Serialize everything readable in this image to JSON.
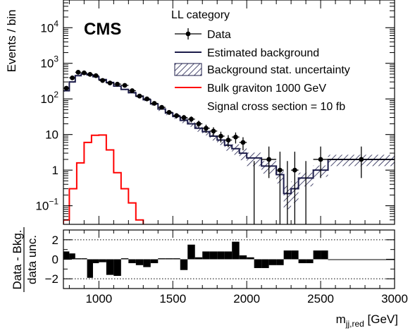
{
  "figure": {
    "experiment_label": "CMS",
    "legend_title": "LL category",
    "legend_note": "Signal cross section = 10 fb"
  },
  "chart_data": [
    {
      "type": "histogram",
      "panel": "main",
      "ylabel": "Events / bin",
      "yscale": "log",
      "ylim": [
        0.03,
        60000
      ],
      "xlim": [
        760,
        3000
      ],
      "yticks": [
        {
          "value": 0.1,
          "base": "10",
          "exp": "−1"
        },
        {
          "value": 1,
          "label": "1"
        },
        {
          "value": 10,
          "label": "10"
        },
        {
          "value": 100,
          "base": "10",
          "exp": "2"
        },
        {
          "value": 1000,
          "base": "10",
          "exp": "3"
        },
        {
          "value": 10000,
          "base": "10",
          "exp": "4"
        }
      ],
      "legend": [
        {
          "key": "data",
          "label": "Data"
        },
        {
          "key": "background",
          "label": "Estimated background"
        },
        {
          "key": "uncertainty",
          "label": "Background stat. uncertainty"
        },
        {
          "key": "signal",
          "label": "Bulk graviton 1000 GeV"
        }
      ],
      "colors": {
        "data": "#000000",
        "background": "#1c1c4a",
        "uncertainty": "#1c1c4a",
        "signal": "#ff0000"
      },
      "background": {
        "edges": [
          760,
          800,
          840,
          880,
          920,
          960,
          1000,
          1050,
          1100,
          1150,
          1200,
          1250,
          1300,
          1350,
          1400,
          1450,
          1500,
          1550,
          1600,
          1650,
          1700,
          1750,
          1800,
          1850,
          1900,
          1950,
          2000,
          2100,
          2200,
          2250,
          2300,
          2350,
          2450,
          2550,
          3000
        ],
        "values": [
          170,
          300,
          450,
          500,
          470,
          420,
          350,
          290,
          230,
          185,
          150,
          120,
          95,
          72,
          52,
          40,
          32,
          25,
          20,
          15,
          12,
          9,
          7,
          5,
          4,
          3,
          2.2,
          1.3,
          0.75,
          0.22,
          0.3,
          0.6,
          1.0,
          2.0
        ],
        "unc_low": [
          160,
          285,
          430,
          480,
          450,
          400,
          335,
          275,
          218,
          175,
          140,
          111,
          87,
          65,
          46,
          35,
          27.5,
          21,
          16.5,
          12,
          9.5,
          6.8,
          5.1,
          3.5,
          2.7,
          1.9,
          1.3,
          0.8,
          0.42,
          0.08,
          0.12,
          0.35,
          0.65,
          1.3
        ],
        "unc_high": [
          180,
          315,
          470,
          520,
          490,
          440,
          365,
          305,
          242,
          195,
          160,
          129,
          103,
          79,
          58,
          45,
          36.5,
          29,
          23.5,
          18,
          14.5,
          11.2,
          8.9,
          6.5,
          5.3,
          4.1,
          3.1,
          1.8,
          1.08,
          0.36,
          0.48,
          0.85,
          1.35,
          2.7
        ]
      },
      "signal": {
        "edges": [
          760,
          800,
          850,
          900,
          950,
          1000,
          1050,
          1100,
          1150,
          1200,
          1250,
          1300,
          3000
        ],
        "values": [
          0.04,
          0.3,
          1.6,
          6.0,
          9.5,
          9.7,
          3.7,
          0.85,
          0.3,
          0.12,
          0.04,
          0.02
        ]
      },
      "data": {
        "x": [
          780,
          820,
          860,
          900,
          940,
          980,
          1025,
          1075,
          1125,
          1175,
          1225,
          1275,
          1325,
          1375,
          1425,
          1475,
          1525,
          1575,
          1625,
          1675,
          1725,
          1775,
          1825,
          1875,
          1925,
          1975,
          2050,
          2150,
          2225,
          2275,
          2325,
          2400,
          2500,
          2775
        ],
        "xerr_low": [
          20,
          20,
          20,
          20,
          20,
          20,
          25,
          25,
          25,
          25,
          25,
          25,
          25,
          25,
          25,
          25,
          25,
          25,
          25,
          25,
          25,
          25,
          25,
          25,
          25,
          25,
          50,
          50,
          25,
          25,
          25,
          50,
          50,
          225
        ],
        "xerr_high": [
          20,
          20,
          20,
          20,
          20,
          20,
          25,
          25,
          25,
          25,
          25,
          25,
          25,
          25,
          25,
          25,
          25,
          25,
          25,
          25,
          25,
          25,
          25,
          25,
          25,
          25,
          50,
          50,
          25,
          25,
          25,
          50,
          50,
          225
        ],
        "y": [
          200,
          390,
          560,
          540,
          490,
          450,
          330,
          280,
          260,
          240,
          170,
          120,
          100,
          75,
          58,
          42,
          34,
          30,
          27,
          20,
          15,
          12.5,
          9,
          7,
          8.5,
          6,
          null,
          2,
          1,
          null,
          1,
          null,
          2,
          2
        ],
        "yerr_low": [
          14,
          20,
          24,
          23,
          22,
          21,
          18,
          17,
          16,
          15,
          13,
          11,
          10,
          8.6,
          7.6,
          6.5,
          5.8,
          5.5,
          5.2,
          4.5,
          3.9,
          3.5,
          3.0,
          2.6,
          2.9,
          2.4,
          null,
          1.4,
          0.97,
          null,
          0.97,
          null,
          1.4,
          1.4
        ],
        "yerr_high": [
          14,
          20,
          24,
          23,
          22,
          21,
          18,
          17,
          16,
          15,
          13,
          11,
          10,
          8.6,
          7.6,
          6.5,
          5.8,
          5.5,
          5.2,
          4.5,
          3.9,
          3.5,
          3.0,
          2.6,
          2.9,
          2.4,
          null,
          2.6,
          2.3,
          null,
          2.3,
          null,
          2.6,
          2.6
        ]
      }
    },
    {
      "type": "bar",
      "panel": "ratio",
      "ylabel_line1": "Data - Bkg.",
      "ylabel_line2": "data unc.",
      "xlabel_main": "m",
      "xlabel_sub": "jj,red",
      "xlabel_unit": " [GeV]",
      "ylim": [
        -3,
        3
      ],
      "ref_lines": [
        -2,
        2
      ],
      "yticks": [
        {
          "value": -2,
          "label": "−2"
        },
        {
          "value": 0,
          "label": "0"
        },
        {
          "value": 2,
          "label": "2"
        }
      ],
      "xticks": [
        {
          "value": 1000,
          "label": "1000"
        },
        {
          "value": 1500,
          "label": "1500"
        },
        {
          "value": 2000,
          "label": "2000"
        },
        {
          "value": 2500,
          "label": "2500"
        },
        {
          "value": 3000,
          "label": "3000"
        }
      ],
      "edges": [
        760,
        800,
        840,
        880,
        920,
        960,
        1000,
        1050,
        1100,
        1150,
        1200,
        1250,
        1300,
        1350,
        1400,
        1450,
        1500,
        1550,
        1600,
        1650,
        1700,
        1750,
        1800,
        1850,
        1900,
        1950,
        2000,
        2050,
        2100,
        2150,
        2200,
        2250,
        2300,
        2350,
        2400,
        2450,
        2500,
        2550,
        3000
      ],
      "values": [
        0.8,
        0.6,
        0.1,
        0.1,
        -1.9,
        -0.4,
        -0.3,
        -1.6,
        -1.7,
        0.1,
        -0.4,
        -0.6,
        -0.8,
        -0.4,
        0.1,
        0.1,
        0.1,
        -1.1,
        1.5,
        0.2,
        0.8,
        0.8,
        0.8,
        0.8,
        1.8,
        0.4,
        0.2,
        -0.9,
        -0.9,
        -0.6,
        -0.6,
        0.9,
        0.9,
        -0.4,
        -0.4,
        0.9,
        0.9,
        0.0
      ]
    }
  ]
}
